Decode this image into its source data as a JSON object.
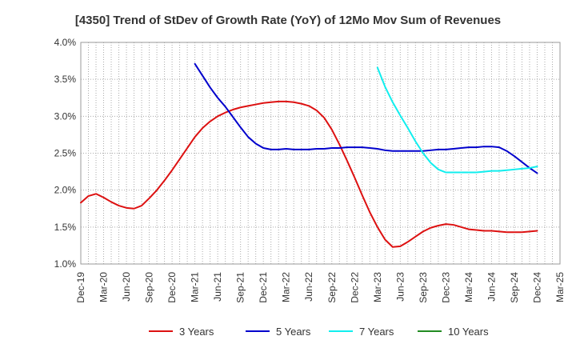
{
  "chart_data": {
    "type": "line",
    "title": "[4350]  Trend of StDev of Growth Rate (YoY) of 12Mo Mov Sum of Revenues",
    "xlabel": "",
    "ylabel": "",
    "ylim": [
      1.0,
      4.0
    ],
    "y_ticks": [
      1.0,
      1.5,
      2.0,
      2.5,
      3.0,
      3.5,
      4.0
    ],
    "y_tick_labels": [
      "1.0%",
      "1.5%",
      "2.0%",
      "2.5%",
      "3.0%",
      "3.5%",
      "4.0%"
    ],
    "x_tick_labels": [
      "Dec-19",
      "Mar-20",
      "Jun-20",
      "Sep-20",
      "Dec-20",
      "Mar-21",
      "Jun-21",
      "Sep-21",
      "Dec-21",
      "Mar-22",
      "Jun-22",
      "Sep-22",
      "Dec-22",
      "Mar-23",
      "Jun-23",
      "Sep-23",
      "Dec-23",
      "Mar-24",
      "Jun-24",
      "Sep-24",
      "Dec-24",
      "Mar-25"
    ],
    "x_range_months": [
      0,
      63
    ],
    "grid": true,
    "legend_position": "bottom",
    "series": [
      {
        "name": "3 Years",
        "color": "#dd1111",
        "x_months": [
          0,
          1,
          2,
          3,
          4,
          5,
          6,
          7,
          8,
          9,
          10,
          11,
          12,
          13,
          14,
          15,
          16,
          17,
          18,
          19,
          20,
          21,
          22,
          23,
          24,
          25,
          26,
          27,
          28,
          29,
          30,
          31,
          32,
          33,
          34,
          35,
          36,
          37,
          38,
          39,
          40,
          41,
          42,
          43,
          44,
          45,
          46,
          47,
          48,
          49,
          50,
          51,
          52,
          53,
          54,
          55,
          56,
          57,
          58,
          59,
          60
        ],
        "values": [
          1.83,
          1.92,
          1.95,
          1.9,
          1.84,
          1.79,
          1.76,
          1.75,
          1.79,
          1.89,
          2.0,
          2.13,
          2.27,
          2.42,
          2.57,
          2.72,
          2.84,
          2.93,
          3.0,
          3.05,
          3.09,
          3.12,
          3.14,
          3.16,
          3.18,
          3.19,
          3.2,
          3.2,
          3.19,
          3.17,
          3.14,
          3.08,
          2.98,
          2.82,
          2.62,
          2.4,
          2.17,
          1.93,
          1.7,
          1.5,
          1.33,
          1.23,
          1.24,
          1.3,
          1.37,
          1.44,
          1.49,
          1.52,
          1.54,
          1.53,
          1.5,
          1.47,
          1.46,
          1.45,
          1.45,
          1.44,
          1.43,
          1.43,
          1.43,
          1.44,
          1.45
        ]
      },
      {
        "name": "5 Years",
        "color": "#0000cc",
        "x_months": [
          15,
          16,
          17,
          18,
          19,
          20,
          21,
          22,
          23,
          24,
          25,
          26,
          27,
          28,
          29,
          30,
          31,
          32,
          33,
          34,
          35,
          36,
          37,
          38,
          39,
          40,
          41,
          42,
          43,
          44,
          45,
          46,
          47,
          48,
          49,
          50,
          51,
          52,
          53,
          54,
          55,
          56,
          57,
          58,
          59,
          60
        ],
        "values": [
          3.71,
          3.55,
          3.39,
          3.25,
          3.13,
          2.99,
          2.85,
          2.72,
          2.63,
          2.57,
          2.55,
          2.55,
          2.56,
          2.55,
          2.55,
          2.55,
          2.56,
          2.56,
          2.57,
          2.57,
          2.58,
          2.58,
          2.58,
          2.57,
          2.56,
          2.54,
          2.53,
          2.53,
          2.53,
          2.53,
          2.53,
          2.54,
          2.55,
          2.55,
          2.56,
          2.57,
          2.58,
          2.58,
          2.59,
          2.59,
          2.58,
          2.53,
          2.46,
          2.38,
          2.3,
          2.23
        ]
      },
      {
        "name": "7 Years",
        "color": "#11eeee",
        "x_months": [
          39,
          40,
          41,
          42,
          43,
          44,
          45,
          46,
          47,
          48,
          49,
          50,
          51,
          52,
          53,
          54,
          55,
          56,
          57,
          58,
          59,
          60
        ],
        "values": [
          3.66,
          3.4,
          3.19,
          3.01,
          2.84,
          2.66,
          2.5,
          2.37,
          2.28,
          2.24,
          2.24,
          2.24,
          2.24,
          2.24,
          2.25,
          2.26,
          2.26,
          2.27,
          2.28,
          2.29,
          2.3,
          2.32
        ]
      },
      {
        "name": "10 Years",
        "color": "#228b22",
        "x_months": [],
        "values": []
      }
    ]
  }
}
